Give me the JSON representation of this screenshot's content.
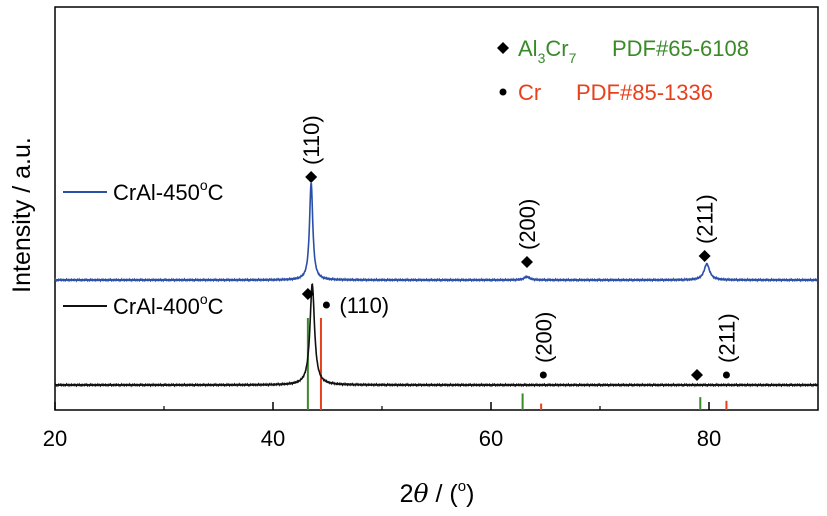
{
  "chart_data": {
    "type": "line",
    "title": "",
    "xlabel_main": "2",
    "xlabel_theta": "θ",
    "xlabel_rest": " / (",
    "xlabel_degree": "o",
    "xlabel_close": ")",
    "ylabel": "Intensity / a.u.",
    "xlim": [
      20,
      90
    ],
    "x_ticks": [
      "20",
      "40",
      "60",
      "80"
    ],
    "y_ticks": [],
    "grid": false,
    "legend": {
      "placement": "top-right",
      "entries": [
        {
          "marker": "diamond",
          "name_base": "Al",
          "sub1": "3",
          "name_mid": "Cr",
          "sub2": "7",
          "pdf": "PDF#65-6108",
          "color": "#3a8a2a"
        },
        {
          "marker": "dot",
          "name_base": "Cr",
          "sub1": "",
          "name_mid": "",
          "sub2": "",
          "pdf": "PDF#85-1336",
          "color": "#e8401c"
        }
      ]
    },
    "series": [
      {
        "name_base": "CrAl-450",
        "degree": "o",
        "name_unit": "C",
        "color": "#2a4fa8",
        "baseline": 1.6,
        "peaks": [
          {
            "x": 43.5,
            "height": 5.4,
            "width": 0.18
          },
          {
            "x": 63.3,
            "height": 0.18,
            "width": 0.3
          },
          {
            "x": 79.8,
            "height": 0.9,
            "width": 0.3
          }
        ],
        "annotations": [
          {
            "x": 43.5,
            "marker": "diamond",
            "label": "(110)"
          },
          {
            "x": 63.3,
            "marker": "diamond",
            "label": "(200)"
          },
          {
            "x": 79.6,
            "marker": "diamond",
            "label": "(211)"
          }
        ]
      },
      {
        "name_base": "CrAl-400",
        "degree": "o",
        "name_unit": "C",
        "color": "#111111",
        "baseline": 0.0,
        "peaks": [
          {
            "x": 43.6,
            "height": 5.6,
            "width": 0.25
          }
        ],
        "annotations": [
          {
            "x": 43.2,
            "marker": "diamond",
            "label": ""
          },
          {
            "x": 44.9,
            "marker": "dot",
            "label": "(110)"
          },
          {
            "x": 64.8,
            "marker": "dot",
            "label": "(200)"
          },
          {
            "x": 78.9,
            "marker": "diamond",
            "label": ""
          },
          {
            "x": 81.6,
            "marker": "dot",
            "label": "(211)"
          }
        ]
      }
    ],
    "reference_lines": [
      {
        "phase": "Al3Cr7",
        "color": "#3a8a2a",
        "positions": [
          43.2,
          62.9,
          79.2
        ],
        "heights": [
          1.0,
          0.18,
          0.14
        ]
      },
      {
        "phase": "Cr",
        "color": "#e8401c",
        "positions": [
          44.4,
          64.6,
          81.6
        ],
        "heights": [
          1.0,
          0.07,
          0.1
        ]
      }
    ]
  }
}
